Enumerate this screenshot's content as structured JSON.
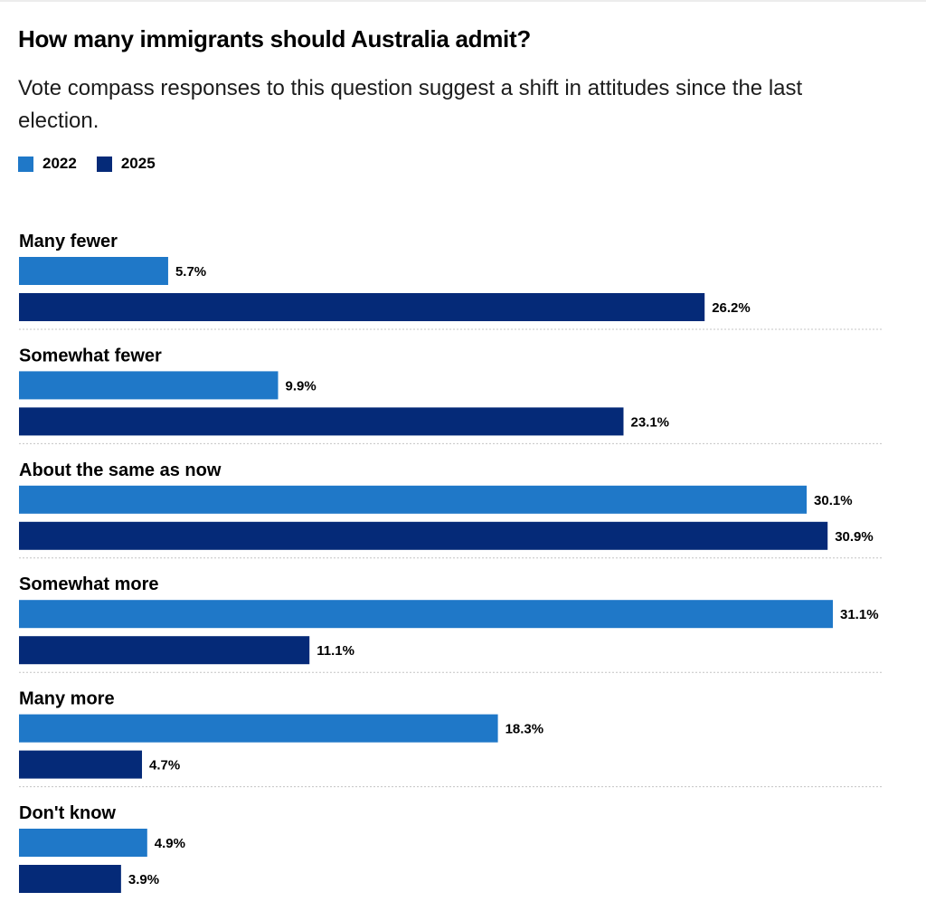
{
  "chart_data": {
    "type": "bar",
    "orientation": "horizontal",
    "title": "How many immigrants should Australia admit?",
    "subtitle": "Vote compass responses to this question suggest a shift in attitudes since the last election.",
    "categories": [
      "Many fewer",
      "Somewhat fewer",
      "About the same as now",
      "Somewhat more",
      "Many more",
      "Don't know"
    ],
    "series": [
      {
        "name": "2022",
        "color": "#1f78c8",
        "values": [
          5.7,
          9.9,
          30.1,
          31.1,
          18.3,
          4.9
        ],
        "labels": [
          "5.7%",
          "9.9%",
          "30.1%",
          "31.1%",
          "18.3%",
          "4.9%"
        ]
      },
      {
        "name": "2025",
        "color": "#052a78",
        "values": [
          26.2,
          23.1,
          30.9,
          11.1,
          4.7,
          3.9
        ],
        "labels": [
          "26.2%",
          "23.1%",
          "30.9%",
          "11.1%",
          "4.7%",
          "3.9%"
        ]
      }
    ],
    "unit": "%",
    "xlim": [
      0,
      31.1
    ],
    "grid": false,
    "legend_placement": "top-left"
  }
}
